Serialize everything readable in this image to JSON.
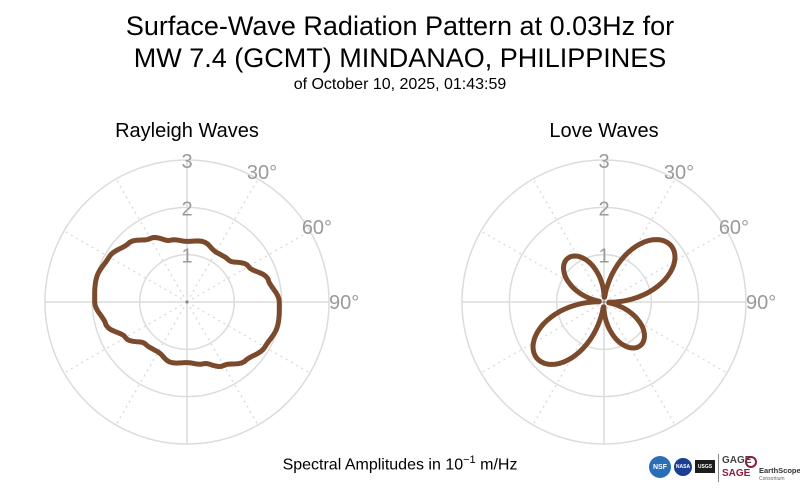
{
  "header": {
    "title_line1": "Surface-Wave Radiation Pattern at 0.03Hz for",
    "title_line2": "MW 7.4 (GCMT) MINDANAO, PHILIPPINES",
    "subtitle": "of October 10, 2025, 01:43:59"
  },
  "footer": {
    "amplitude_label_prefix": "Spectral Amplitudes in 10",
    "amplitude_label_exponent": "−1",
    "amplitude_label_unit": "m/Hz"
  },
  "logos": {
    "nsf": "NSF",
    "nasa": "NASA",
    "usgs": "USGS",
    "gage": "GAGE",
    "sage": "SAGE",
    "earthscope": "EarthScope",
    "earthscope_sub": "Consortium"
  },
  "colors": {
    "pattern": "#7b4a2c",
    "grid": "#dcdcdc",
    "tick_label": "#9a9a9a"
  },
  "chart_data": [
    {
      "type": "line",
      "projection": "polar",
      "title": "Rayleigh Waves",
      "r_ticks": [
        1,
        2,
        3
      ],
      "r_tick_labels": [
        "1",
        "2",
        "3"
      ],
      "rlim": [
        0,
        3
      ],
      "theta_direction": "clockwise",
      "theta_zero": "top",
      "theta_tick_labels": [
        "30°",
        "60°",
        "90°"
      ],
      "theta_tick_label_angles": [
        30,
        60,
        90
      ],
      "grid": true,
      "series": [
        {
          "theta": [
            0,
            15,
            30,
            45,
            60,
            75,
            90,
            105,
            120,
            135,
            150,
            165,
            180,
            195,
            210,
            225,
            240,
            255,
            270,
            285,
            300,
            315,
            330,
            345
          ],
          "r": [
            1.28,
            1.32,
            1.22,
            1.25,
            1.5,
            1.78,
            1.95,
            1.98,
            1.9,
            1.75,
            1.55,
            1.35,
            1.28,
            1.32,
            1.22,
            1.25,
            1.5,
            1.78,
            1.95,
            1.98,
            1.9,
            1.75,
            1.55,
            1.35
          ]
        }
      ]
    },
    {
      "type": "line",
      "projection": "polar",
      "title": "Love Waves",
      "r_ticks": [
        1,
        2,
        3
      ],
      "r_tick_labels": [
        "1",
        "2",
        "3"
      ],
      "rlim": [
        0,
        3
      ],
      "theta_direction": "clockwise",
      "theta_zero": "top",
      "theta_tick_labels": [
        "30°",
        "60°",
        "90°"
      ],
      "theta_tick_label_angles": [
        30,
        60,
        90
      ],
      "grid": true,
      "series": [
        {
          "lobe_orientations": [
            50,
            140,
            230,
            320
          ],
          "lobe_peaks": [
            1.85,
            1.2,
            1.85,
            1.2
          ],
          "min_value": 0.1
        }
      ]
    }
  ]
}
